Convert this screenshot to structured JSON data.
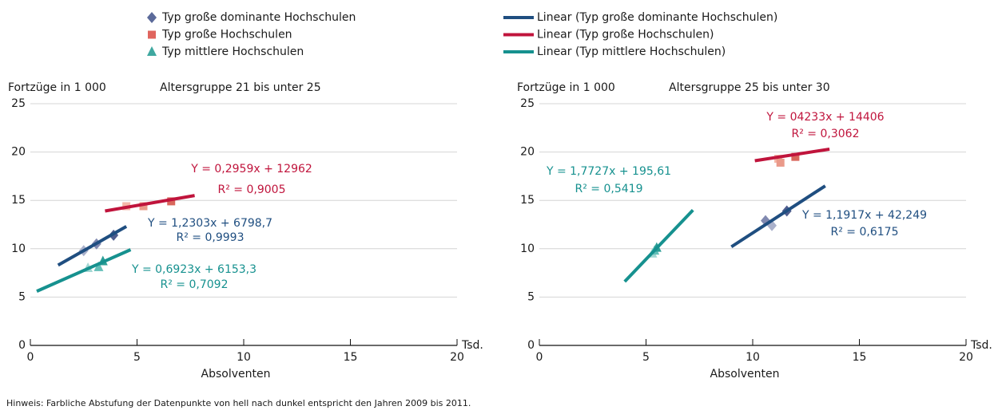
{
  "chart_data": [
    {
      "type": "scatter",
      "subtitle": "Altersgruppe 21 bis unter 25",
      "ylabel": "Fortzüge in 1 000",
      "xlabel": "Absolventen",
      "xunit": "Tsd.",
      "xlim": [
        0,
        20
      ],
      "xticks": [
        0,
        5,
        10,
        15,
        20
      ],
      "ylim": [
        0,
        25
      ],
      "yticks": [
        0,
        5,
        10,
        15,
        20,
        25
      ],
      "grid": true,
      "series": [
        {
          "name": "Typ große dominante Hochschulen",
          "marker": "diamond",
          "color": "#5b6a9a",
          "colors": [
            "#aab1cb",
            "#8189b0",
            "#4f5d8e"
          ],
          "x": [
            2.5,
            3.1,
            3.9
          ],
          "values": [
            9.8,
            10.5,
            11.4
          ]
        },
        {
          "name": "Typ große Hochschulen",
          "marker": "square",
          "color": "#e0655e",
          "colors": [
            "#f5b7a8",
            "#ea9a8a",
            "#d9675c"
          ],
          "x": [
            4.5,
            5.3,
            6.6
          ],
          "values": [
            14.4,
            14.4,
            14.9
          ]
        },
        {
          "name": "Typ mittlere Hochschulen",
          "marker": "triangle",
          "color": "#3fa8a0",
          "colors": [
            "#a3d7d3",
            "#63bfb8",
            "#2c9e96"
          ],
          "x": [
            2.7,
            3.2,
            3.4
          ],
          "values": [
            8.0,
            8.1,
            8.7
          ]
        }
      ],
      "trendlines": [
        {
          "name": "Linear (Typ große dominante Hochschulen)",
          "color": "#1f4e80",
          "x": [
            1.3,
            4.5
          ],
          "values": [
            8.3,
            12.3
          ]
        },
        {
          "name": "Linear (Typ große Hochschulen)",
          "color": "#c0143c",
          "x": [
            3.5,
            7.7
          ],
          "values": [
            13.9,
            15.5
          ]
        },
        {
          "name": "Linear (Typ mittlere Hochschulen)",
          "color": "#16918f",
          "x": [
            0.3,
            4.7
          ],
          "values": [
            5.6,
            9.9
          ]
        }
      ],
      "annotations": [
        {
          "text": "Y = 0,2959x + 12962",
          "color": "#c0143c"
        },
        {
          "text": "R² = 0,9005",
          "color": "#c0143c"
        },
        {
          "text": "Y = 1,2303x + 6798,7",
          "color": "#1f4e80"
        },
        {
          "text": "R² = 0,9993",
          "color": "#1f4e80"
        },
        {
          "text": "Y = 0,6923x + 6153,3",
          "color": "#16918f"
        },
        {
          "text": "R² = 0,7092",
          "color": "#16918f"
        }
      ]
    },
    {
      "type": "scatter",
      "subtitle": "Altersgruppe   25 bis unter 30",
      "ylabel": "Fortzüge in 1 000",
      "xlabel": "Absolventen",
      "xunit": "Tsd.",
      "xlim": [
        0,
        20
      ],
      "xticks": [
        0,
        5,
        10,
        15,
        20
      ],
      "ylim": [
        0,
        25
      ],
      "yticks": [
        0,
        5,
        10,
        15,
        20,
        25
      ],
      "grid": true,
      "series": [
        {
          "marker": "diamond",
          "colors": [
            "#aab1cb",
            "#8189b0",
            "#4f5d8e"
          ],
          "x": [
            10.9,
            10.6,
            11.6
          ],
          "values": [
            12.4,
            12.9,
            13.9
          ]
        },
        {
          "marker": "square",
          "colors": [
            "#f5b7a8",
            "#ea9a8a",
            "#d9675c"
          ],
          "x": [
            11.2,
            11.3,
            12.0
          ],
          "values": [
            19.3,
            18.9,
            19.5
          ]
        },
        {
          "marker": "triangle",
          "colors": [
            "#a3d7d3",
            "#63bfb8",
            "#2c9e96"
          ],
          "x": [
            5.3,
            5.4,
            5.5
          ],
          "values": [
            9.5,
            9.8,
            10.1
          ]
        }
      ],
      "trendlines": [
        {
          "color": "#1f4e80",
          "x": [
            9.0,
            13.4
          ],
          "values": [
            10.2,
            16.5
          ]
        },
        {
          "color": "#c0143c",
          "x": [
            10.1,
            13.6
          ],
          "values": [
            19.1,
            20.3
          ]
        },
        {
          "color": "#16918f",
          "x": [
            4.0,
            7.2
          ],
          "values": [
            6.6,
            14.0
          ]
        }
      ],
      "annotations": [
        {
          "text": "Y = 04233x + 14406",
          "color": "#c0143c"
        },
        {
          "text": "R² = 0,3062",
          "color": "#c0143c"
        },
        {
          "text": "Y = 1,7727x + 195,61",
          "color": "#16918f"
        },
        {
          "text": "R² = 0,5419",
          "color": "#16918f"
        },
        {
          "text": "Y = 1,1917x + 42,249",
          "color": "#1f4e80"
        },
        {
          "text": "R² = 0,6175",
          "color": "#1f4e80"
        }
      ]
    }
  ],
  "note": "Hinweis: Farbliche Abstufung der Datenpunkte von hell nach dunkel entspricht den Jahren 2009 bis 2011."
}
